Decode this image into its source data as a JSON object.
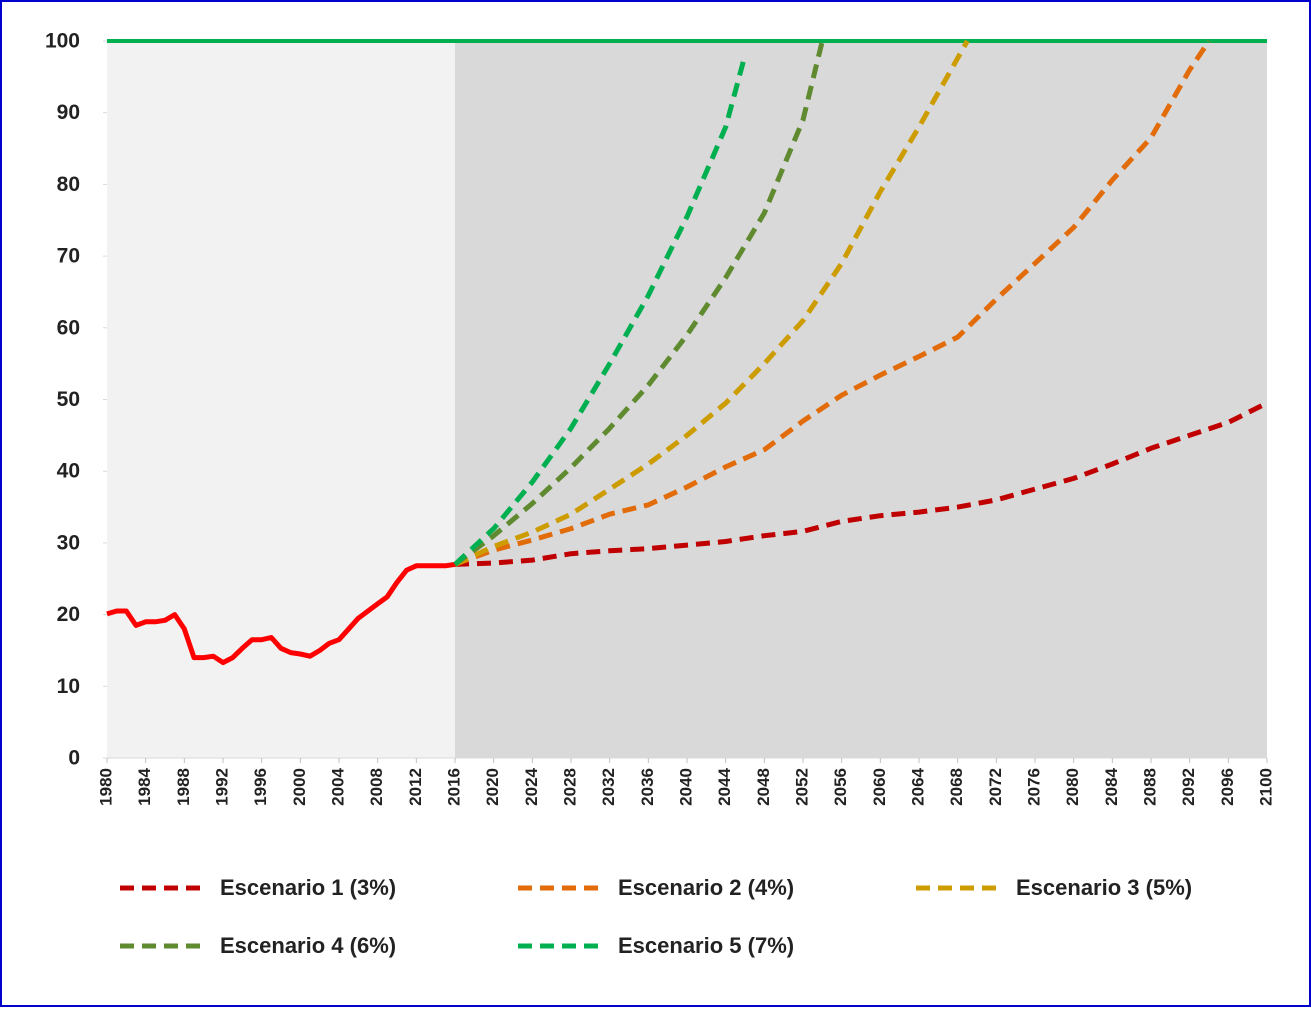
{
  "chart_data": {
    "type": "line",
    "xlim": [
      1980,
      2100
    ],
    "xticks": [
      1980,
      1984,
      1988,
      1992,
      1996,
      2000,
      2004,
      2008,
      2012,
      2016,
      2020,
      2024,
      2028,
      2032,
      2036,
      2040,
      2044,
      2048,
      2052,
      2056,
      2060,
      2064,
      2068,
      2072,
      2076,
      2080,
      2084,
      2088,
      2092,
      2096,
      2100
    ],
    "ylim": [
      0,
      100
    ],
    "yticks": [
      0,
      10,
      20,
      30,
      40,
      50,
      60,
      70,
      80,
      90,
      100
    ],
    "regions": [
      {
        "from": 1980,
        "to": 2016,
        "color": "#f2f2f2"
      },
      {
        "from": 2016,
        "to": 2100,
        "color": "#d9d9d9"
      }
    ],
    "reference_line": {
      "value": 100,
      "color": "#00b050"
    },
    "legend": "bottom",
    "series": [
      {
        "color": "#ff0000",
        "dashed": false,
        "x": [
          1980,
          1981,
          1982,
          1983,
          1984,
          1985,
          1986,
          1987,
          1988,
          1989,
          1990,
          1991,
          1992,
          1993,
          1994,
          1995,
          1996,
          1997,
          1998,
          1999,
          2000,
          2001,
          2002,
          2003,
          2004,
          2005,
          2006,
          2007,
          2008,
          2009,
          2010,
          2011,
          2012,
          2013,
          2014,
          2015,
          2016
        ],
        "values": [
          20.1,
          20.5,
          20.5,
          18.5,
          19,
          19,
          19.2,
          20,
          18,
          14,
          14,
          14.2,
          13.3,
          14,
          15.3,
          16.5,
          16.5,
          16.8,
          15.3,
          14.7,
          14.5,
          14.2,
          15,
          16,
          16.5,
          18,
          19.5,
          20.5,
          21.5,
          22.5,
          24.5,
          26.2,
          26.8,
          26.8,
          26.8,
          26.8,
          27
        ]
      },
      {
        "name": "Escenario 1 (3%)",
        "color": "#c00000",
        "dashed": true,
        "x": [
          2016,
          2020,
          2024,
          2028,
          2032,
          2036,
          2040,
          2044,
          2048,
          2052,
          2056,
          2060,
          2064,
          2068,
          2072,
          2076,
          2080,
          2084,
          2088,
          2092,
          2096,
          2100
        ],
        "values": [
          27,
          27.2,
          27.6,
          28.5,
          28.9,
          29.2,
          29.7,
          30.2,
          31,
          31.6,
          33,
          33.8,
          34.3,
          35,
          36,
          37.5,
          39,
          41,
          43.2,
          45,
          46.8,
          49.5
        ]
      },
      {
        "name": "Escenario 2 (4%)",
        "color": "#e26b0a",
        "dashed": true,
        "x": [
          2016,
          2020,
          2024,
          2028,
          2032,
          2036,
          2040,
          2044,
          2048,
          2052,
          2056,
          2060,
          2064,
          2068,
          2072,
          2076,
          2080,
          2084,
          2088,
          2092,
          2094
        ],
        "values": [
          27,
          29,
          30.4,
          32,
          34,
          35.3,
          37.8,
          40.6,
          43,
          47,
          50.6,
          53.4,
          56,
          58.7,
          64,
          69,
          74,
          80.6,
          86.5,
          96,
          100
        ]
      },
      {
        "name": "Escenario 3 (5%)",
        "color": "#cc9c00",
        "dashed": true,
        "x": [
          2016,
          2020,
          2024,
          2028,
          2032,
          2036,
          2040,
          2044,
          2048,
          2052,
          2056,
          2060,
          2064,
          2069
        ],
        "values": [
          27,
          29.5,
          31.5,
          34,
          37.5,
          41,
          45,
          49.5,
          55,
          61,
          69,
          79,
          88,
          100
        ]
      },
      {
        "name": "Escenario 4 (6%)",
        "color": "#5f8a30",
        "dashed": true,
        "x": [
          2016,
          2020,
          2024,
          2028,
          2032,
          2036,
          2040,
          2044,
          2048,
          2052,
          2054
        ],
        "values": [
          27,
          31,
          35.5,
          40.5,
          46,
          52,
          59,
          67,
          76,
          89,
          100
        ]
      },
      {
        "name": "Escenario 5 (7%)",
        "color": "#00b050",
        "dashed": true,
        "x": [
          2016,
          2020,
          2024,
          2028,
          2032,
          2036,
          2040,
          2044,
          2046
        ],
        "values": [
          27,
          32,
          38.5,
          46,
          55,
          64.5,
          75.5,
          88,
          98
        ]
      }
    ]
  }
}
